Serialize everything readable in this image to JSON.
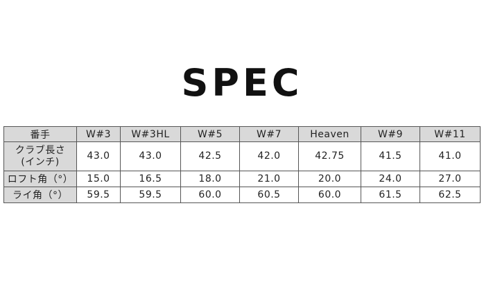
{
  "title": "SPEC",
  "table": {
    "header": [
      "番手",
      "W#3",
      "W#3HL",
      "W#5",
      "W#7",
      "Heaven",
      "W#9",
      "W#11"
    ],
    "rows": [
      {
        "label": "クラブ長さ\n(インチ)",
        "label_line1": "クラブ長さ",
        "label_line2": "(インチ)",
        "values": [
          "43.0",
          "43.0",
          "42.5",
          "42.0",
          "42.75",
          "41.5",
          "41.0"
        ]
      },
      {
        "label": "ロフト角（°）",
        "values": [
          "15.0",
          "16.5",
          "18.0",
          "21.0",
          "20.0",
          "24.0",
          "27.0"
        ]
      },
      {
        "label": "ライ角（°）",
        "values": [
          "59.5",
          "59.5",
          "60.0",
          "60.5",
          "60.0",
          "61.5",
          "62.5"
        ]
      }
    ]
  },
  "colors": {
    "header_bg": "#d9d9d9",
    "border": "#555555"
  }
}
